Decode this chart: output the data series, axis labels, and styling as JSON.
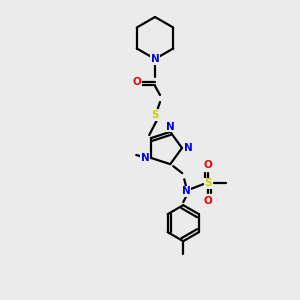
{
  "bg_color": "#ebebeb",
  "atom_colors": {
    "C": "#000000",
    "N": "#0000ee",
    "O": "#ee0000",
    "S": "#cccc00",
    "H": "#000000"
  },
  "bond_color": "#000000",
  "figsize": [
    3.0,
    3.0
  ],
  "dpi": 100,
  "lw": 1.6,
  "fs": 7.5
}
